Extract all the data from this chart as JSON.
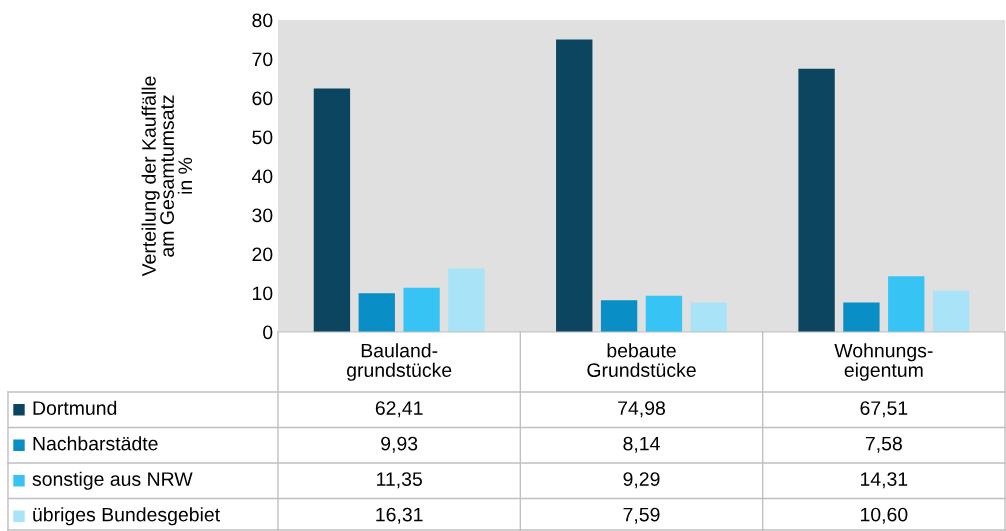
{
  "chart_data": {
    "type": "bar",
    "ylabel": "Verteilung der Kauffälle\nam Gesamtumsatz\nin %",
    "categories": [
      "Bauland-\ngrundstücke",
      "bebaute\nGrundstücke",
      "Wohnungs-\neigentum"
    ],
    "series": [
      {
        "name": "Dortmund",
        "color": "#0b4560",
        "values": [
          62.41,
          74.98,
          67.51
        ],
        "value_labels": [
          "62,41",
          "74,98",
          "67,51"
        ]
      },
      {
        "name": "Nachbarstädte",
        "color": "#0a8ec6",
        "values": [
          9.93,
          8.14,
          7.58
        ],
        "value_labels": [
          "9,93",
          "8,14",
          "7,58"
        ]
      },
      {
        "name": "sonstige aus NRW",
        "color": "#38c3f5",
        "values": [
          11.35,
          9.29,
          14.31
        ],
        "value_labels": [
          "11,35",
          "9,29",
          "14,31"
        ]
      },
      {
        "name": "übriges Bundesgebiet",
        "color": "#a9e3f8",
        "values": [
          16.31,
          7.59,
          10.6
        ],
        "value_labels": [
          "16,31",
          "7,59",
          "10,60"
        ]
      }
    ],
    "ylim": [
      0,
      80
    ],
    "yticks": [
      0,
      10,
      20,
      30,
      40,
      50,
      60,
      70,
      80
    ],
    "grid": false,
    "legend": "bottom"
  }
}
